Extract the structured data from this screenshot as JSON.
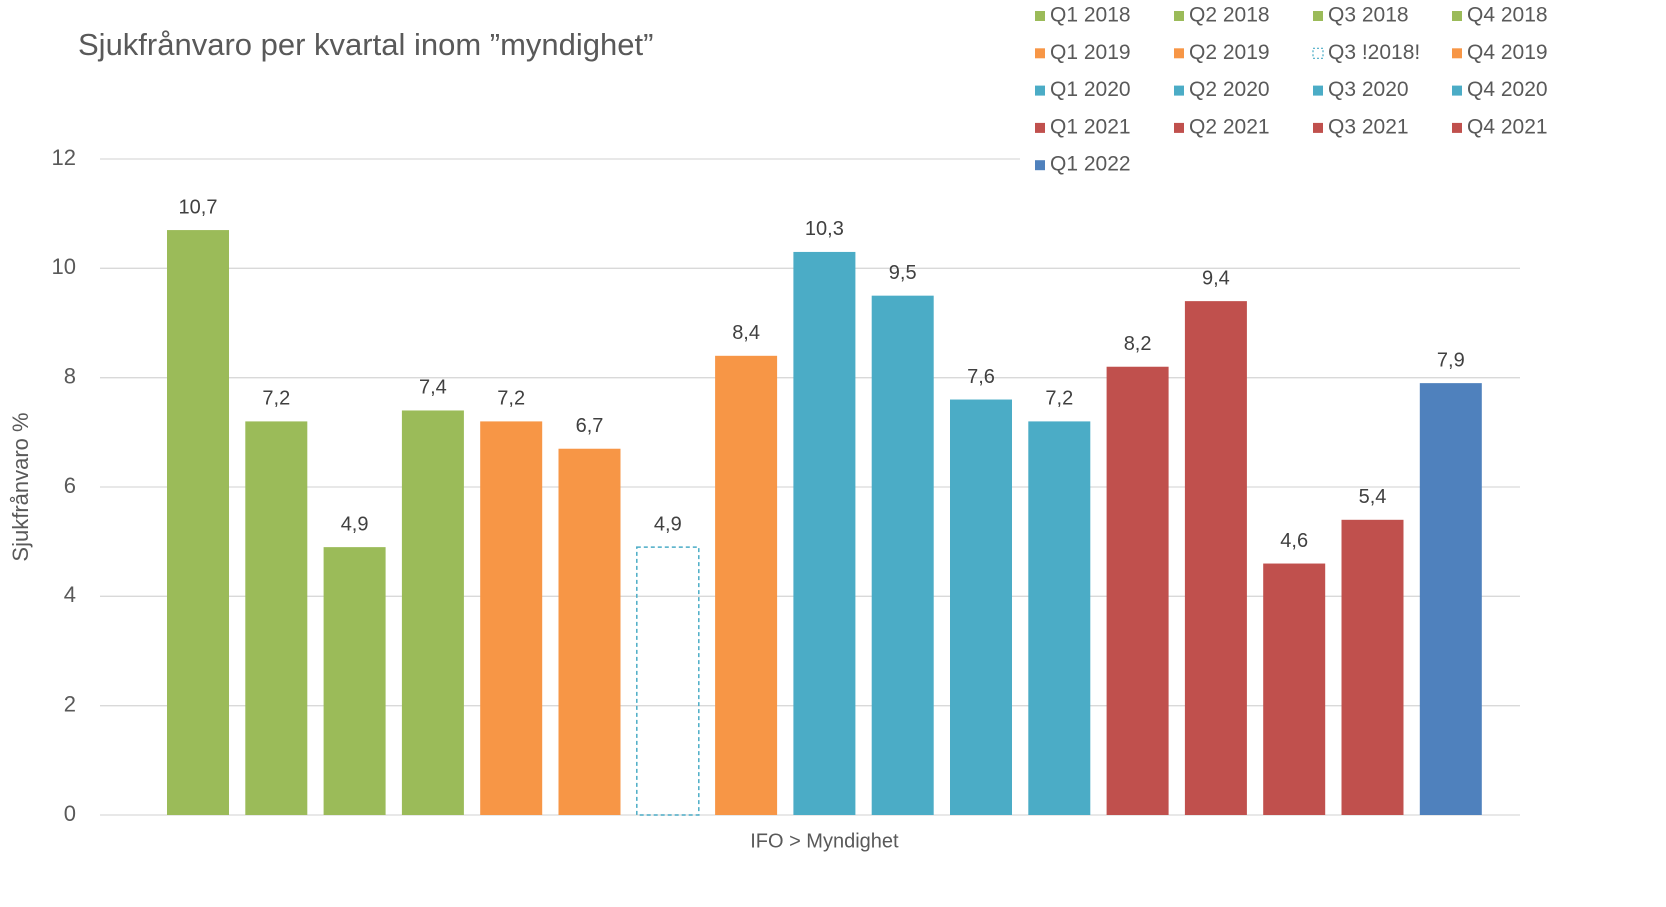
{
  "chart_data": {
    "type": "bar",
    "title": "Sjukfrånvaro per kvartal inom ”myndighet”",
    "y_label": "Sjukfrånvaro %",
    "categories": [
      "IFO > Myndighet"
    ],
    "series": [
      {
        "name": "Q1 2018",
        "color": "#9bbb59",
        "values": [
          10.7
        ],
        "value_labels": [
          "10,7"
        ]
      },
      {
        "name": "Q2 2018",
        "color": "#9bbb59",
        "values": [
          7.2
        ],
        "value_labels": [
          "7,2"
        ]
      },
      {
        "name": "Q3 2018",
        "color": "#9bbb59",
        "values": [
          4.9
        ],
        "value_labels": [
          "4,9"
        ]
      },
      {
        "name": "Q4 2018",
        "color": "#9bbb59",
        "values": [
          7.4
        ],
        "value_labels": [
          "7,4"
        ]
      },
      {
        "name": "Q1 2019",
        "color": "#f79646",
        "values": [
          7.2
        ],
        "value_labels": [
          "7,2"
        ]
      },
      {
        "name": "Q2 2019",
        "color": "#f79646",
        "values": [
          6.7
        ],
        "value_labels": [
          "6,7"
        ]
      },
      {
        "name": "Q3 !2018!",
        "color": "#4bacc6",
        "dashed": true,
        "values": [
          4.9
        ],
        "value_labels": [
          "4,9"
        ]
      },
      {
        "name": "Q4 2019",
        "color": "#f79646",
        "values": [
          8.4
        ],
        "value_labels": [
          "8,4"
        ]
      },
      {
        "name": "Q1 2020",
        "color": "#4bacc6",
        "values": [
          10.3
        ],
        "value_labels": [
          "10,3"
        ]
      },
      {
        "name": "Q2 2020",
        "color": "#4bacc6",
        "values": [
          9.5
        ],
        "value_labels": [
          "9,5"
        ]
      },
      {
        "name": "Q3 2020",
        "color": "#4bacc6",
        "values": [
          7.6
        ],
        "value_labels": [
          "7,6"
        ]
      },
      {
        "name": "Q4 2020",
        "color": "#4bacc6",
        "values": [
          7.2
        ],
        "value_labels": [
          "7,2"
        ]
      },
      {
        "name": "Q1 2021",
        "color": "#c0504d",
        "values": [
          8.2
        ],
        "value_labels": [
          "8,2"
        ]
      },
      {
        "name": "Q2 2021",
        "color": "#c0504d",
        "values": [
          9.4
        ],
        "value_labels": [
          "9,4"
        ]
      },
      {
        "name": "Q3 2021",
        "color": "#c0504d",
        "values": [
          4.6
        ],
        "value_labels": [
          "4,6"
        ]
      },
      {
        "name": "Q4 2021",
        "color": "#c0504d",
        "values": [
          5.4
        ],
        "value_labels": [
          "5,4"
        ]
      },
      {
        "name": "Q1 2022",
        "color": "#4f81bd",
        "values": [
          7.9
        ],
        "value_labels": [
          "7,9"
        ]
      }
    ],
    "ylim": [
      0,
      12
    ],
    "yticks": [
      0,
      2,
      4,
      6,
      8,
      10,
      12
    ],
    "grid": true,
    "legend": "top-right"
  }
}
